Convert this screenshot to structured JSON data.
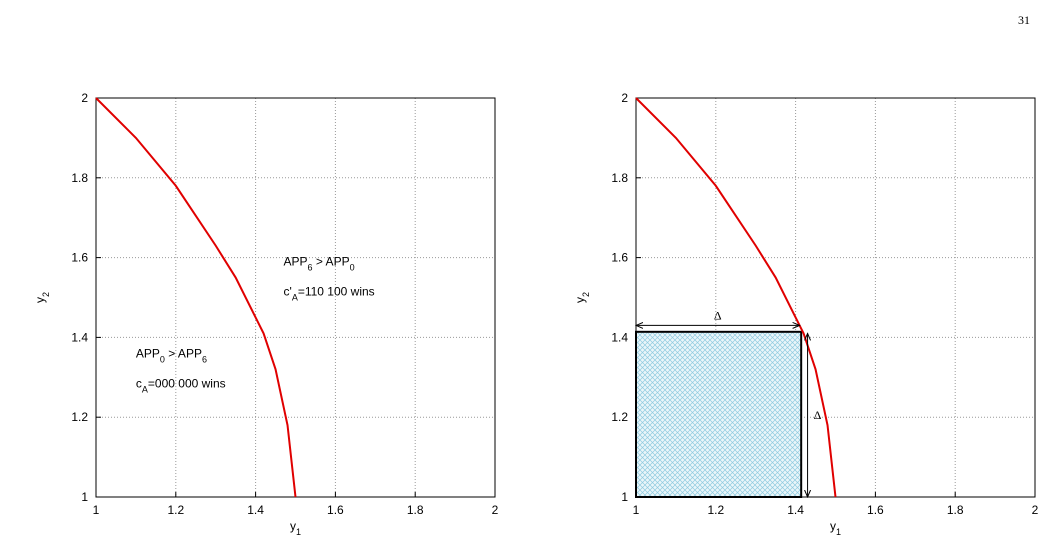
{
  "page_number": "31",
  "chart_data": [
    {
      "type": "line",
      "xlabel": "y",
      "xlabel_sub": "1",
      "ylabel": "y",
      "ylabel_sub": "2",
      "xlim": [
        1,
        2
      ],
      "ylim": [
        1,
        2
      ],
      "xticks": [
        1,
        1.2,
        1.4,
        1.6,
        1.8,
        2
      ],
      "yticks": [
        1,
        1.2,
        1.4,
        1.6,
        1.8,
        2
      ],
      "grid": true,
      "x": [
        1,
        1.1,
        1.2,
        1.3,
        1.35,
        1.4,
        1.42,
        1.45,
        1.48,
        1.5
      ],
      "series": [
        {
          "color": "#e00000",
          "values": [
            2,
            1.9,
            1.78,
            1.63,
            1.55,
            1.45,
            1.41,
            1.32,
            1.18,
            1
          ]
        }
      ],
      "annotations": [
        {
          "x": 1.47,
          "y": 1.58,
          "runs": [
            {
              "text": "APP"
            },
            {
              "sub": "6"
            },
            {
              "text": " > APP"
            },
            {
              "sub": "0"
            }
          ]
        },
        {
          "x": 1.47,
          "y": 1.505,
          "runs": [
            {
              "text": "c'"
            },
            {
              "sub": "A"
            },
            {
              "text": "=110 100 wins"
            }
          ]
        },
        {
          "x": 1.1,
          "y": 1.35,
          "runs": [
            {
              "text": "APP"
            },
            {
              "sub": "0"
            },
            {
              "text": " > APP"
            },
            {
              "sub": "6"
            }
          ]
        },
        {
          "x": 1.1,
          "y": 1.275,
          "runs": [
            {
              "text": "c"
            },
            {
              "sub": "A"
            },
            {
              "text": "=000 000 wins"
            }
          ]
        }
      ]
    },
    {
      "type": "line",
      "xlabel": "y",
      "xlabel_sub": "1",
      "ylabel": "y",
      "ylabel_sub": "2",
      "xlim": [
        1,
        2
      ],
      "ylim": [
        1,
        2
      ],
      "xticks": [
        1,
        1.2,
        1.4,
        1.6,
        1.8,
        2
      ],
      "yticks": [
        1,
        1.2,
        1.4,
        1.6,
        1.8,
        2
      ],
      "grid": true,
      "x": [
        1,
        1.1,
        1.2,
        1.3,
        1.35,
        1.4,
        1.42,
        1.45,
        1.48,
        1.5
      ],
      "series": [
        {
          "color": "#e00000",
          "values": [
            2,
            1.9,
            1.78,
            1.63,
            1.55,
            1.45,
            1.41,
            1.32,
            1.18,
            1
          ]
        }
      ],
      "region": {
        "x": [
          1,
          1.414
        ],
        "y": [
          1,
          1.414
        ]
      },
      "arrows": [
        {
          "label": "Δ",
          "x": [
            1,
            1.41
          ],
          "y": [
            1.43,
            1.43
          ]
        },
        {
          "label": "Δ",
          "x": [
            1.43,
            1.43
          ],
          "y": [
            1,
            1.41
          ]
        }
      ]
    }
  ]
}
